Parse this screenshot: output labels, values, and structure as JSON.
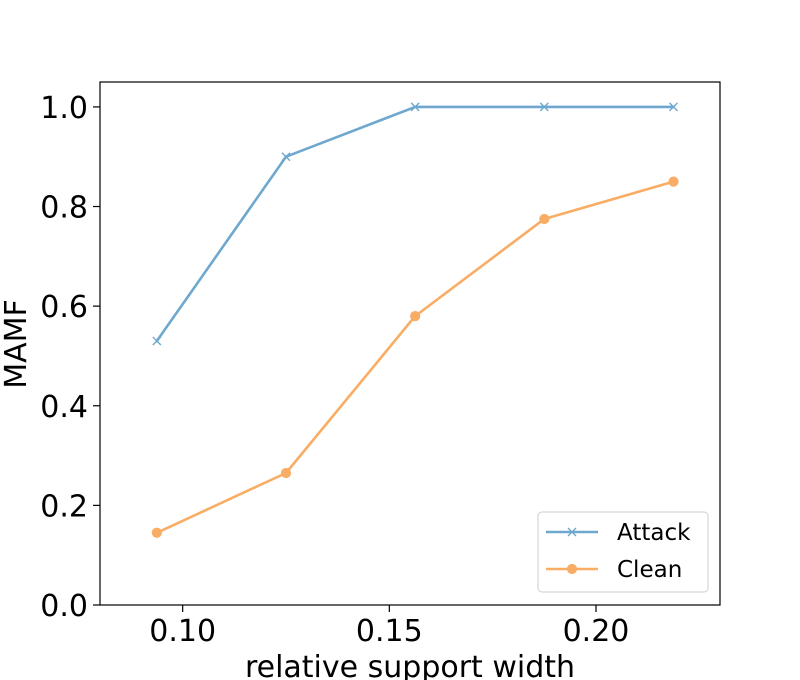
{
  "chart_data": {
    "type": "line",
    "xlabel": "relative support width",
    "ylabel": "MAMF",
    "xlim": [
      0.08,
      0.23
    ],
    "ylim": [
      0.0,
      1.05
    ],
    "x_ticks": [
      "0.10",
      "0.15",
      "0.20"
    ],
    "x_tick_values": [
      0.1,
      0.15,
      0.2
    ],
    "y_ticks": [
      "0.0",
      "0.2",
      "0.4",
      "0.6",
      "0.8",
      "1.0"
    ],
    "y_tick_values": [
      0.0,
      0.2,
      0.4,
      0.6,
      0.8,
      1.0
    ],
    "grid": false,
    "legend_position": "lower-right",
    "x": [
      0.09375,
      0.125,
      0.15625,
      0.1875,
      0.21875
    ],
    "series": [
      {
        "name": "Attack",
        "values": [
          0.53,
          0.9,
          1.0,
          1.0,
          1.0
        ],
        "color": "#6fa8cf",
        "marker": "x"
      },
      {
        "name": "Clean",
        "values": [
          0.145,
          0.265,
          0.58,
          0.775,
          0.85
        ],
        "color": "#f9ad64",
        "marker": "o"
      }
    ]
  }
}
